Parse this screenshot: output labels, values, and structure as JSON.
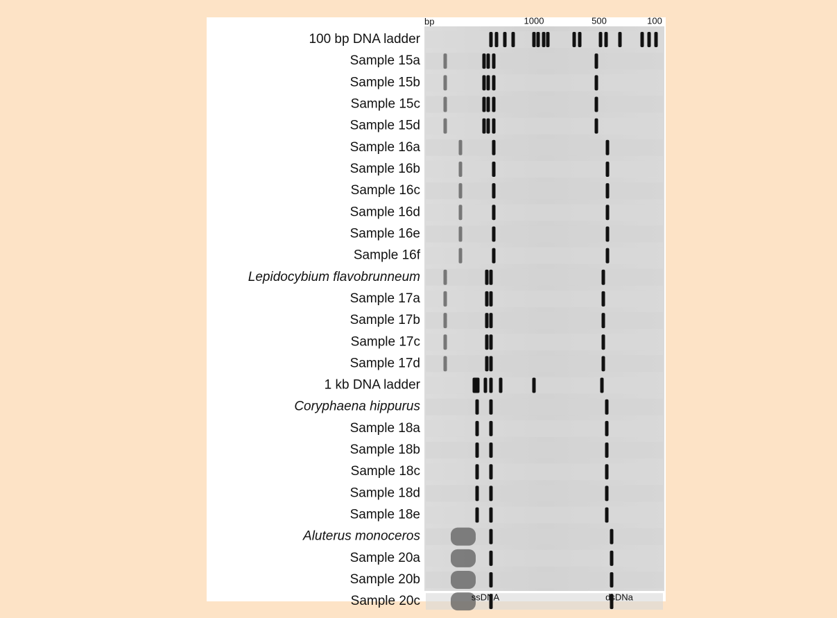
{
  "axis_labels": {
    "unit": "bp",
    "top": [
      "1000",
      "500",
      "100"
    ],
    "bottom": [
      "ssDNA",
      "dsDNa"
    ]
  },
  "lanes": [
    {
      "label": "100 bp DNA ladder"
    },
    {
      "label": "Sample 15a"
    },
    {
      "label": "Sample 15b"
    },
    {
      "label": "Sample 15c"
    },
    {
      "label": "Sample 15d"
    },
    {
      "label": "Sample 16a"
    },
    {
      "label": "Sample 16b"
    },
    {
      "label": "Sample 16c"
    },
    {
      "label": "Sample 16d"
    },
    {
      "label": "Sample 16e"
    },
    {
      "label": "Sample 16f"
    },
    {
      "label": "Lepidocybium flavobrunneum",
      "italic": true
    },
    {
      "label": "Sample 17a"
    },
    {
      "label": "Sample 17b"
    },
    {
      "label": "Sample 17c"
    },
    {
      "label": "Sample 17d"
    },
    {
      "label": "1 kb DNA ladder"
    },
    {
      "label": "Coryphaena hippurus",
      "italic": true
    },
    {
      "label": "Sample 18a"
    },
    {
      "label": "Sample 18b"
    },
    {
      "label": "Sample 18c"
    },
    {
      "label": "Sample 18d"
    },
    {
      "label": "Sample 18e"
    },
    {
      "label": "Aluterus monoceros",
      "italic": true
    },
    {
      "label": "Sample 20a"
    },
    {
      "label": "Sample 20b"
    },
    {
      "label": "Sample 20c"
    }
  ]
}
